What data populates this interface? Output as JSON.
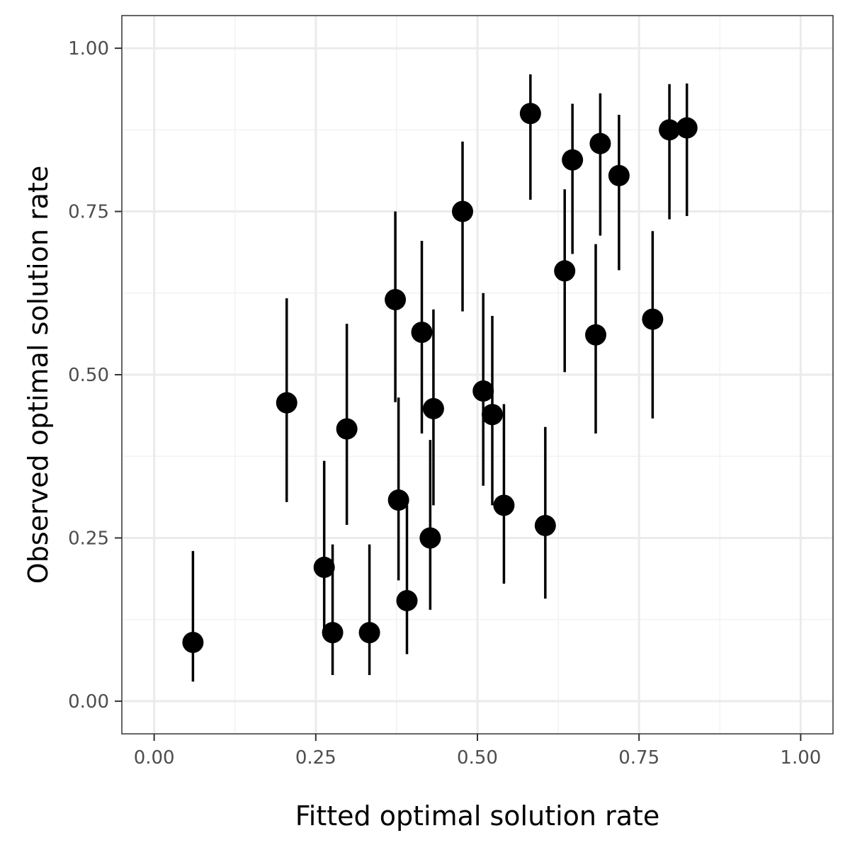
{
  "chart_data": {
    "type": "scatter",
    "title": "",
    "xlabel": "Fitted optimal solution rate",
    "ylabel": "Observed optimal solution rate",
    "xlim": [
      -0.05,
      1.05
    ],
    "ylim": [
      -0.05,
      1.05
    ],
    "x_ticks": [
      "0.00",
      "0.25",
      "0.50",
      "0.75",
      "1.00"
    ],
    "y_ticks": [
      "0.00",
      "0.25",
      "0.50",
      "0.75",
      "1.00"
    ],
    "x_tick_values": [
      0,
      0.25,
      0.5,
      0.75,
      1
    ],
    "y_tick_values": [
      0,
      0.25,
      0.5,
      0.75,
      1
    ],
    "minor_breaks": [
      0.125,
      0.375,
      0.625,
      0.875
    ],
    "grid": true,
    "theme": "bw",
    "points": [
      {
        "x": 0.06,
        "y": 0.09,
        "ymin": 0.03,
        "ymax": 0.23
      },
      {
        "x": 0.205,
        "y": 0.457,
        "ymin": 0.305,
        "ymax": 0.617
      },
      {
        "x": 0.263,
        "y": 0.205,
        "ymin": 0.1,
        "ymax": 0.368
      },
      {
        "x": 0.276,
        "y": 0.105,
        "ymin": 0.04,
        "ymax": 0.24
      },
      {
        "x": 0.298,
        "y": 0.417,
        "ymin": 0.27,
        "ymax": 0.578
      },
      {
        "x": 0.333,
        "y": 0.105,
        "ymin": 0.04,
        "ymax": 0.24
      },
      {
        "x": 0.373,
        "y": 0.615,
        "ymin": 0.458,
        "ymax": 0.75
      },
      {
        "x": 0.378,
        "y": 0.308,
        "ymin": 0.185,
        "ymax": 0.465
      },
      {
        "x": 0.391,
        "y": 0.154,
        "ymin": 0.072,
        "ymax": 0.3
      },
      {
        "x": 0.414,
        "y": 0.565,
        "ymin": 0.41,
        "ymax": 0.705
      },
      {
        "x": 0.427,
        "y": 0.25,
        "ymin": 0.14,
        "ymax": 0.4
      },
      {
        "x": 0.432,
        "y": 0.448,
        "ymin": 0.3,
        "ymax": 0.6
      },
      {
        "x": 0.477,
        "y": 0.75,
        "ymin": 0.597,
        "ymax": 0.857
      },
      {
        "x": 0.509,
        "y": 0.475,
        "ymin": 0.33,
        "ymax": 0.625
      },
      {
        "x": 0.523,
        "y": 0.439,
        "ymin": 0.3,
        "ymax": 0.59
      },
      {
        "x": 0.541,
        "y": 0.3,
        "ymin": 0.18,
        "ymax": 0.455
      },
      {
        "x": 0.582,
        "y": 0.9,
        "ymin": 0.768,
        "ymax": 0.96
      },
      {
        "x": 0.605,
        "y": 0.269,
        "ymin": 0.157,
        "ymax": 0.42
      },
      {
        "x": 0.635,
        "y": 0.659,
        "ymin": 0.504,
        "ymax": 0.784
      },
      {
        "x": 0.647,
        "y": 0.829,
        "ymin": 0.685,
        "ymax": 0.915
      },
      {
        "x": 0.683,
        "y": 0.561,
        "ymin": 0.41,
        "ymax": 0.7
      },
      {
        "x": 0.69,
        "y": 0.854,
        "ymin": 0.713,
        "ymax": 0.931
      },
      {
        "x": 0.719,
        "y": 0.805,
        "ymin": 0.66,
        "ymax": 0.898
      },
      {
        "x": 0.771,
        "y": 0.585,
        "ymin": 0.433,
        "ymax": 0.72
      },
      {
        "x": 0.797,
        "y": 0.875,
        "ymin": 0.738,
        "ymax": 0.945
      },
      {
        "x": 0.824,
        "y": 0.878,
        "ymin": 0.743,
        "ymax": 0.946
      }
    ],
    "colors": {
      "panel_border": "#333333",
      "grid_major": "#ebebeb",
      "grid_minor": "#f3f3f3",
      "point": "#000000",
      "errorbar": "#000000",
      "tick_text": "#4d4d4d"
    }
  }
}
